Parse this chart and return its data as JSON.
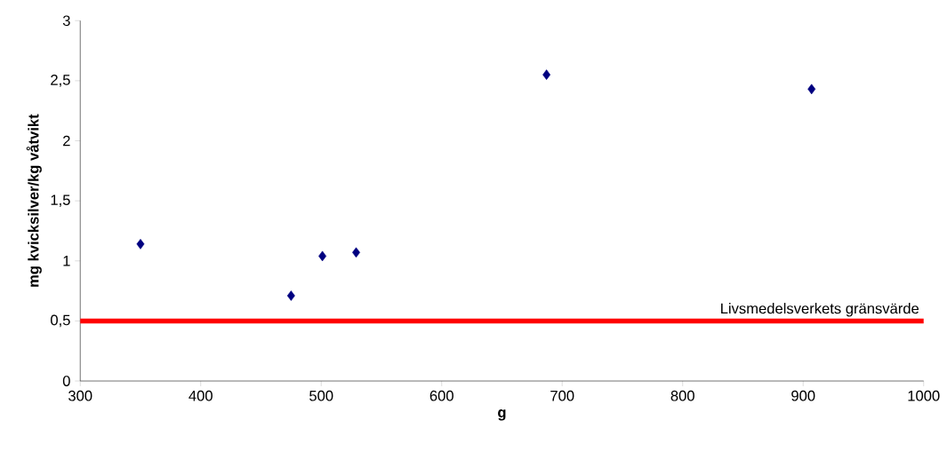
{
  "chart_data": {
    "type": "scatter",
    "xlabel": "g",
    "ylabel": "mg kvicksilver/kg våtvikt",
    "x": [
      350,
      475,
      501,
      529,
      687,
      907
    ],
    "values": [
      1.14,
      0.71,
      1.04,
      1.07,
      2.55,
      2.43
    ],
    "color": "#000080",
    "marker": "diamond",
    "xlim": [
      300,
      1000
    ],
    "xticks": [
      300,
      400,
      500,
      600,
      700,
      800,
      900,
      1000
    ],
    "ylim": [
      0,
      3
    ],
    "yticks": [
      0,
      {
        "value": 0.5,
        "label": "0,5"
      },
      1,
      {
        "value": 1.5,
        "label": "1,5"
      },
      2,
      {
        "value": 2.5,
        "label": "2,5"
      },
      3
    ],
    "ref_lines": [
      {
        "axis": "y",
        "value": 0.5,
        "label": "Livsmedelsverkets gränsvärde",
        "color": "#ff0000"
      }
    ]
  }
}
